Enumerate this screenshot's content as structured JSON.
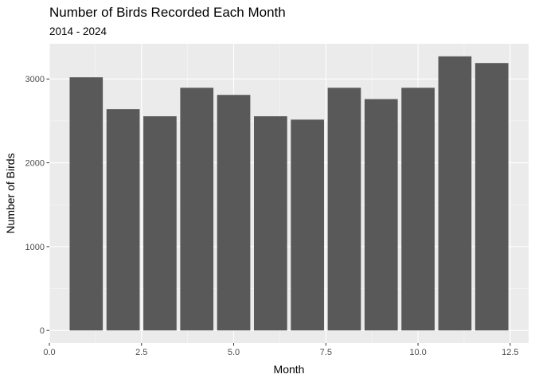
{
  "chart_data": {
    "type": "bar",
    "title": "Number of Birds Recorded Each Month",
    "subtitle": "2014 - 2024",
    "xlabel": "Month",
    "ylabel": "Number of Birds",
    "x": [
      1,
      2,
      3,
      4,
      5,
      6,
      7,
      8,
      9,
      10,
      11,
      12
    ],
    "values": [
      3020,
      2640,
      2555,
      2895,
      2810,
      2555,
      2515,
      2895,
      2760,
      2895,
      3270,
      3190
    ],
    "xlim": [
      0,
      13
    ],
    "ylim": [
      -150,
      3420
    ],
    "x_ticks": [
      0,
      2.5,
      5,
      7.5,
      10,
      12.5
    ],
    "x_tick_labels": [
      "0.0",
      "2.5",
      "5.0",
      "7.5",
      "10.0",
      "12.5"
    ],
    "y_ticks": [
      0,
      1000,
      2000,
      3000
    ],
    "y_tick_labels": [
      "0",
      "1000",
      "2000",
      "3000"
    ],
    "grid": true,
    "legend": "none",
    "colors": {
      "panel": "#ebebeb",
      "grid_major": "#ffffff",
      "bar": "#595959",
      "tick": "#333333"
    }
  }
}
